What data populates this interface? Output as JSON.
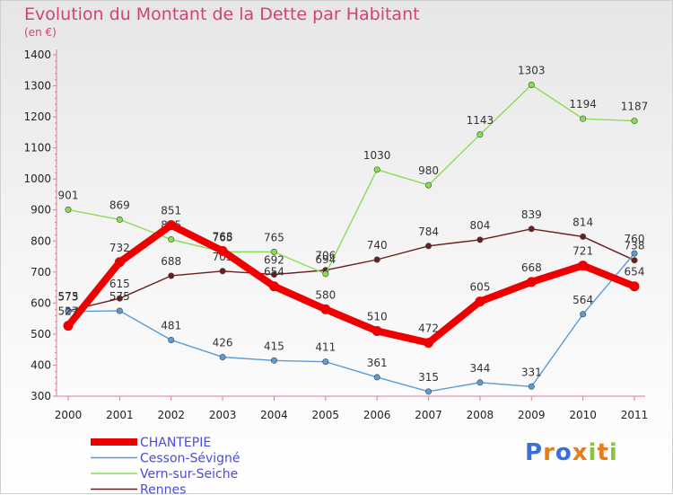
{
  "chart_data": {
    "type": "line",
    "title": "Evolution du Montant de la Dette par Habitant",
    "unit_label": "(en €)",
    "x": [
      "2000",
      "2001",
      "2002",
      "2003",
      "2004",
      "2005",
      "2006",
      "2007",
      "2008",
      "2009",
      "2010",
      "2011"
    ],
    "ylim": [
      300,
      1400
    ],
    "yticks": [
      300,
      400,
      500,
      600,
      700,
      800,
      900,
      1000,
      1100,
      1200,
      1300,
      1400
    ],
    "grid": "none",
    "legend_position": "bottom-left",
    "series": [
      {
        "name": "Rennes",
        "color": "#6b1e1e",
        "values": [
          575,
          615,
          688,
          703,
          692,
          706,
          740,
          784,
          804,
          839,
          814,
          738
        ]
      },
      {
        "name": "Vern-sur-Seiche",
        "color": "#88dd55",
        "values": [
          901,
          869,
          805,
          765,
          765,
          694,
          1030,
          980,
          1143,
          1303,
          1194,
          1187
        ]
      },
      {
        "name": "Cesson-Sévigné",
        "color": "#5b9bd5",
        "values": [
          573,
          575,
          481,
          426,
          415,
          411,
          361,
          315,
          344,
          331,
          564,
          760
        ]
      },
      {
        "name": "CHANTEPIE",
        "color": "#ee0000",
        "values": [
          527,
          732,
          851,
          768,
          654,
          580,
          510,
          472,
          605,
          668,
          721,
          654
        ]
      }
    ],
    "legend_order": [
      "CHANTEPIE",
      "Cesson-Sévigné",
      "Vern-sur-Seiche",
      "Rennes"
    ]
  },
  "logo": {
    "text": "Proxiti",
    "colors": [
      "#3a6fd8",
      "#e87b1e",
      "#3a6fd8",
      "#e87b1e",
      "#8ac43f",
      "#e87b1e",
      "#8ac43f"
    ]
  }
}
